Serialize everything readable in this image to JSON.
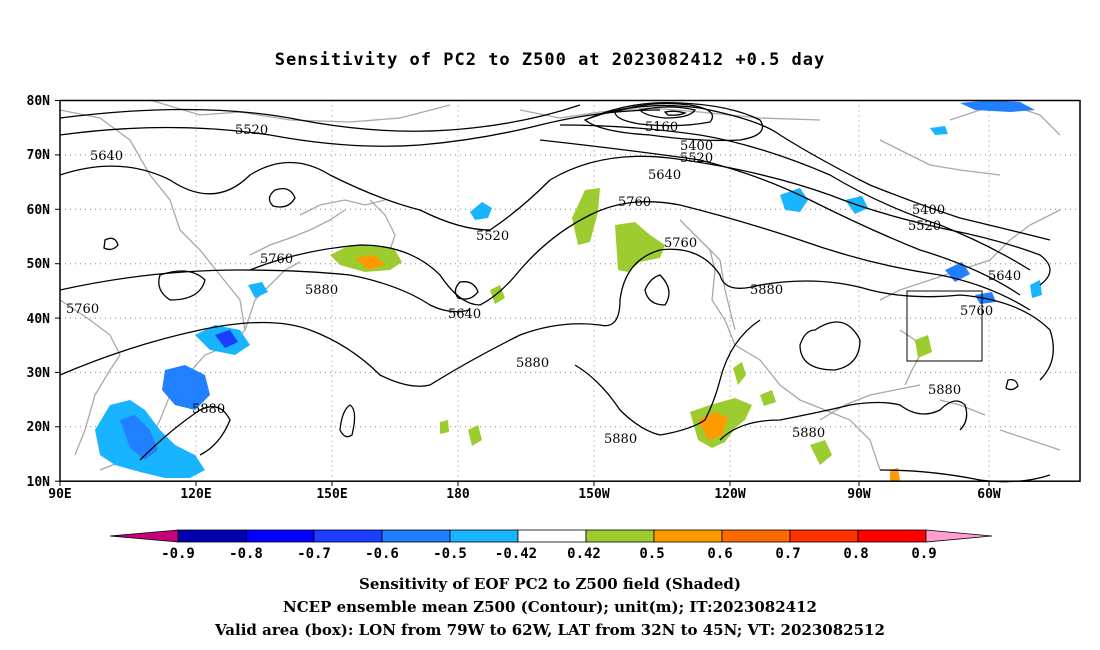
{
  "title": "Sensitivity of PC2 to Z500 at 2023082412 +0.5 day",
  "map": {
    "lat_labels": [
      "80N",
      "70N",
      "60N",
      "50N",
      "40N",
      "30N",
      "20N",
      "10N"
    ],
    "lon_labels": [
      "90E",
      "120E",
      "150E",
      "180",
      "150W",
      "120W",
      "90W",
      "60W"
    ],
    "lon_range": [
      90,
      315
    ],
    "lat_range": [
      10,
      80
    ],
    "grid": "dotted",
    "contour_labels": [
      "5520",
      "5640",
      "5160",
      "5400",
      "5520",
      "5640",
      "5760",
      "5520",
      "5760",
      "5880",
      "5640",
      "5880",
      "5880",
      "5400",
      "5520",
      "5640",
      "5760",
      "5880",
      "5760",
      "5880",
      "5880"
    ],
    "valid_box": {
      "lon": [
        -79,
        -62
      ],
      "lat": [
        32,
        45
      ]
    }
  },
  "colorbar": {
    "labels": [
      "-0.9",
      "-0.8",
      "-0.7",
      "-0.6",
      "-0.5",
      "-0.42",
      "0.42",
      "0.5",
      "0.6",
      "0.7",
      "0.8",
      "0.9"
    ],
    "colors": [
      "#c4007a",
      "#0000b0",
      "#0000ff",
      "#1c3cff",
      "#2080ff",
      "#18b4ff",
      "#ffffff",
      "#9ccc30",
      "#ff9900",
      "#ff6a00",
      "#ff3300",
      "#ff0000",
      "#ff9fd0"
    ]
  },
  "captions": {
    "line1": "Sensitivity of EOF PC2 to Z500 field (Shaded)",
    "line2": "NCEP ensemble mean Z500 (Contour); unit(m); IT:2023082412",
    "line3": "Valid area (box): LON from 79W to 62W, LAT from 32N to 45N; VT: 2023082512"
  }
}
